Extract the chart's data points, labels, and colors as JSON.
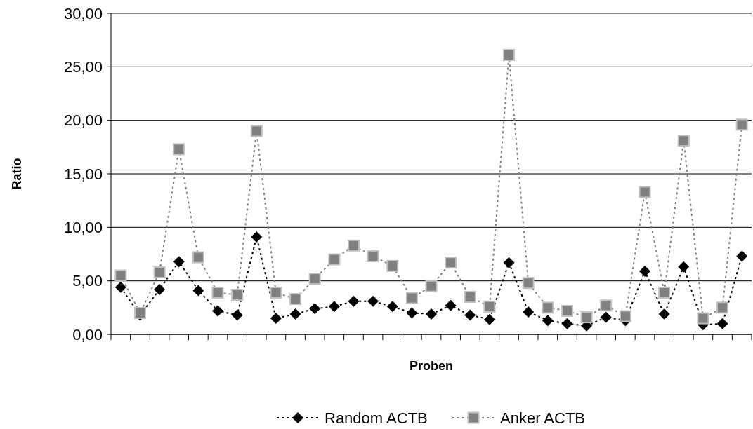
{
  "chart_data": {
    "type": "line",
    "xlabel": "Proben",
    "ylabel": "Ratio",
    "categories": [
      null,
      null,
      null,
      null,
      null,
      null,
      null,
      null,
      null,
      null,
      null,
      null,
      null,
      null,
      null,
      null,
      null,
      null,
      null,
      null,
      null,
      null,
      null,
      null,
      null,
      null,
      null,
      null,
      null,
      null,
      null,
      null,
      null
    ],
    "series": [
      {
        "name": "Random ACTB",
        "color": "#000000",
        "marker": "diamond",
        "line_style": "dotted",
        "values": [
          4.4,
          1.8,
          4.2,
          6.8,
          4.1,
          2.2,
          1.8,
          9.1,
          1.5,
          1.9,
          2.4,
          2.6,
          3.1,
          3.1,
          2.6,
          2.0,
          1.9,
          2.7,
          1.8,
          1.4,
          6.7,
          2.1,
          1.3,
          1.0,
          0.8,
          1.6,
          1.3,
          5.9,
          1.9,
          6.3,
          0.9,
          1.0,
          7.3
        ]
      },
      {
        "name": "Anker ACTB",
        "color": "#808080",
        "marker": "square",
        "line_style": "dotted",
        "values": [
          5.5,
          2.0,
          5.8,
          17.3,
          7.2,
          3.9,
          3.7,
          19.0,
          3.9,
          3.3,
          5.2,
          7.0,
          8.3,
          7.3,
          6.4,
          3.4,
          4.5,
          6.7,
          3.5,
          2.6,
          26.1,
          4.8,
          2.5,
          2.2,
          1.6,
          2.7,
          1.7,
          13.3,
          3.9,
          18.1,
          1.5,
          2.5,
          19.6
        ]
      }
    ],
    "ylim": [
      0,
      30
    ],
    "yticks": [
      {
        "value": 0,
        "label": "0,00"
      },
      {
        "value": 5,
        "label": "5,00"
      },
      {
        "value": 10,
        "label": "10,00"
      },
      {
        "value": 15,
        "label": "15,00"
      },
      {
        "value": 20,
        "label": "20,00"
      },
      {
        "value": 25,
        "label": "25,00"
      },
      {
        "value": 30,
        "label": "30,00"
      }
    ],
    "grid": "y",
    "legend": "bottom"
  }
}
